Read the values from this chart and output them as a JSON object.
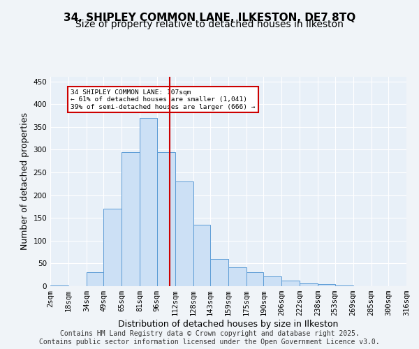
{
  "title_line1": "34, SHIPLEY COMMON LANE, ILKESTON, DE7 8TQ",
  "title_line2": "Size of property relative to detached houses in Ilkeston",
  "xlabel": "Distribution of detached houses by size in Ilkeston",
  "ylabel": "Number of detached properties",
  "footer": "Contains HM Land Registry data © Crown copyright and database right 2025.\nContains public sector information licensed under the Open Government Licence v3.0.",
  "categories": [
    "2sqm",
    "18sqm",
    "34sqm",
    "49sqm",
    "65sqm",
    "81sqm",
    "96sqm",
    "112sqm",
    "128sqm",
    "143sqm",
    "159sqm",
    "175sqm",
    "190sqm",
    "206sqm",
    "222sqm",
    "238sqm",
    "253sqm",
    "269sqm",
    "285sqm",
    "300sqm",
    "316sqm"
  ],
  "bin_edges": [
    2,
    18,
    34,
    49,
    65,
    81,
    96,
    112,
    128,
    143,
    159,
    175,
    190,
    206,
    222,
    238,
    253,
    269,
    285,
    300,
    316
  ],
  "bar_heights": [
    2,
    0,
    30,
    170,
    295,
    370,
    295,
    230,
    135,
    60,
    42,
    30,
    22,
    12,
    6,
    5,
    2,
    0,
    0,
    0,
    0
  ],
  "bar_color": "#cce0f5",
  "bar_edge_color": "#5b9bd5",
  "vline_x": 107,
  "vline_color": "#cc0000",
  "annotation_text": "34 SHIPLEY COMMON LANE: 107sqm\n← 61% of detached houses are smaller (1,041)\n39% of semi-detached houses are larger (666) →",
  "annotation_box_color": "#cc0000",
  "ylim": [
    0,
    460
  ],
  "yticks": [
    0,
    50,
    100,
    150,
    200,
    250,
    300,
    350,
    400,
    450
  ],
  "bg_color": "#e8f0f8",
  "grid_color": "#ffffff",
  "title_fontsize": 11,
  "subtitle_fontsize": 10,
  "tick_fontsize": 7.5,
  "ylabel_fontsize": 9,
  "xlabel_fontsize": 9,
  "footer_fontsize": 7
}
